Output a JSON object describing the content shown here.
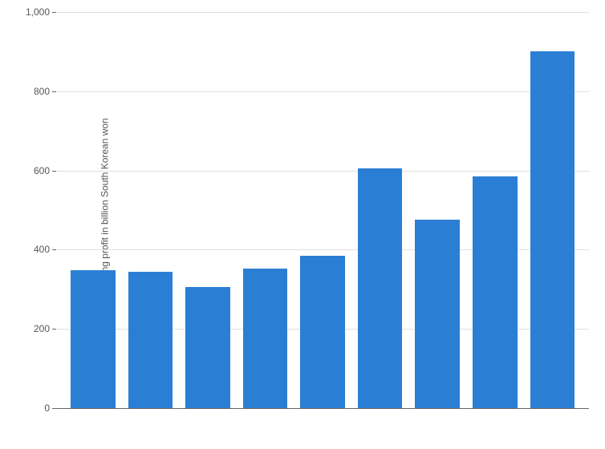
{
  "chart": {
    "type": "bar",
    "ylabel": "Operating profit in billion South Korean won",
    "label_fontsize": 12,
    "ylim": [
      0,
      1000
    ],
    "ytick_step": 200,
    "yticks": [
      0,
      200,
      400,
      600,
      800,
      1000
    ],
    "ytick_labels": [
      "0",
      "200",
      "400",
      "600",
      "800",
      "1,000"
    ],
    "values": [
      348,
      345,
      305,
      352,
      385,
      605,
      475,
      585,
      900
    ],
    "bar_color": "#2a7fd4",
    "background_color": "#ffffff",
    "grid_color": "#e0e0e0",
    "axis_color": "#666666",
    "text_color": "#555555",
    "bar_count": 9
  }
}
